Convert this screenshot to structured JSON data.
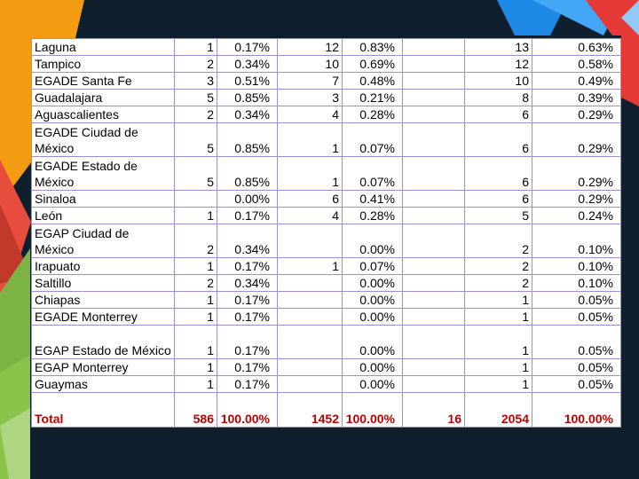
{
  "table": {
    "rows": [
      {
        "name": "Laguna",
        "c1": "1",
        "p1": "0.17%",
        "c2": "12",
        "p2": "0.83%",
        "c3": "",
        "c4": "13",
        "p4": "0.63%",
        "tall": false
      },
      {
        "name": "Tampico",
        "c1": "2",
        "p1": "0.34%",
        "c2": "10",
        "p2": "0.69%",
        "c3": "",
        "c4": "12",
        "p4": "0.58%",
        "tall": false
      },
      {
        "name": "EGADE Santa Fe",
        "c1": "3",
        "p1": "0.51%",
        "c2": "7",
        "p2": "0.48%",
        "c3": "",
        "c4": "10",
        "p4": "0.49%",
        "tall": false
      },
      {
        "name": "Guadalajara",
        "c1": "5",
        "p1": "0.85%",
        "c2": "3",
        "p2": "0.21%",
        "c3": "",
        "c4": "8",
        "p4": "0.39%",
        "tall": false
      },
      {
        "name": "Aguascalientes",
        "c1": "2",
        "p1": "0.34%",
        "c2": "4",
        "p2": "0.28%",
        "c3": "",
        "c4": "6",
        "p4": "0.29%",
        "tall": false
      },
      {
        "name": "EGADE Ciudad de México",
        "c1": "5",
        "p1": "0.85%",
        "c2": "1",
        "p2": "0.07%",
        "c3": "",
        "c4": "6",
        "p4": "0.29%",
        "tall": true
      },
      {
        "name": "EGADE Estado de México",
        "c1": "5",
        "p1": "0.85%",
        "c2": "1",
        "p2": "0.07%",
        "c3": "",
        "c4": "6",
        "p4": "0.29%",
        "tall": true
      },
      {
        "name": "Sinaloa",
        "c1": "",
        "p1": "0.00%",
        "c2": "6",
        "p2": "0.41%",
        "c3": "",
        "c4": "6",
        "p4": "0.29%",
        "tall": false
      },
      {
        "name": "León",
        "c1": "1",
        "p1": "0.17%",
        "c2": "4",
        "p2": "0.28%",
        "c3": "",
        "c4": "5",
        "p4": "0.24%",
        "tall": false
      },
      {
        "name": "EGAP Ciudad de México",
        "c1": "2",
        "p1": "0.34%",
        "c2": "",
        "p2": "0.00%",
        "c3": "",
        "c4": "2",
        "p4": "0.10%",
        "tall": true
      },
      {
        "name": "Irapuato",
        "c1": "1",
        "p1": "0.17%",
        "c2": "1",
        "p2": "0.07%",
        "c3": "",
        "c4": "2",
        "p4": "0.10%",
        "tall": false
      },
      {
        "name": "Saltillo",
        "c1": "2",
        "p1": "0.34%",
        "c2": "",
        "p2": "0.00%",
        "c3": "",
        "c4": "2",
        "p4": "0.10%",
        "tall": false
      },
      {
        "name": "Chiapas",
        "c1": "1",
        "p1": "0.17%",
        "c2": "",
        "p2": "0.00%",
        "c3": "",
        "c4": "1",
        "p4": "0.05%",
        "tall": false
      },
      {
        "name": "EGADE Monterrey",
        "c1": "1",
        "p1": "0.17%",
        "c2": "",
        "p2": "0.00%",
        "c3": "",
        "c4": "1",
        "p4": "0.05%",
        "tall": false
      },
      {
        "name": "EGAP Estado de México",
        "c1": "1",
        "p1": "0.17%",
        "c2": "",
        "p2": "0.00%",
        "c3": "",
        "c4": "1",
        "p4": "0.05%",
        "tall": true
      },
      {
        "name": "EGAP Monterrey",
        "c1": "1",
        "p1": "0.17%",
        "c2": "",
        "p2": "0.00%",
        "c3": "",
        "c4": "1",
        "p4": "0.05%",
        "tall": false
      },
      {
        "name": "Guaymas",
        "c1": "1",
        "p1": "0.17%",
        "c2": "",
        "p2": "0.00%",
        "c3": "",
        "c4": "1",
        "p4": "0.05%",
        "tall": false
      }
    ],
    "total": {
      "name": "Total",
      "c1": "586",
      "p1": "100.00%",
      "c2": "1452",
      "p2": "100.00%",
      "c3": "16",
      "c4": "2054",
      "p4": "100.00%"
    }
  },
  "colors": {
    "background": "#0f1f2e",
    "border": "#9b8fd6",
    "total_text": "#c00000"
  }
}
